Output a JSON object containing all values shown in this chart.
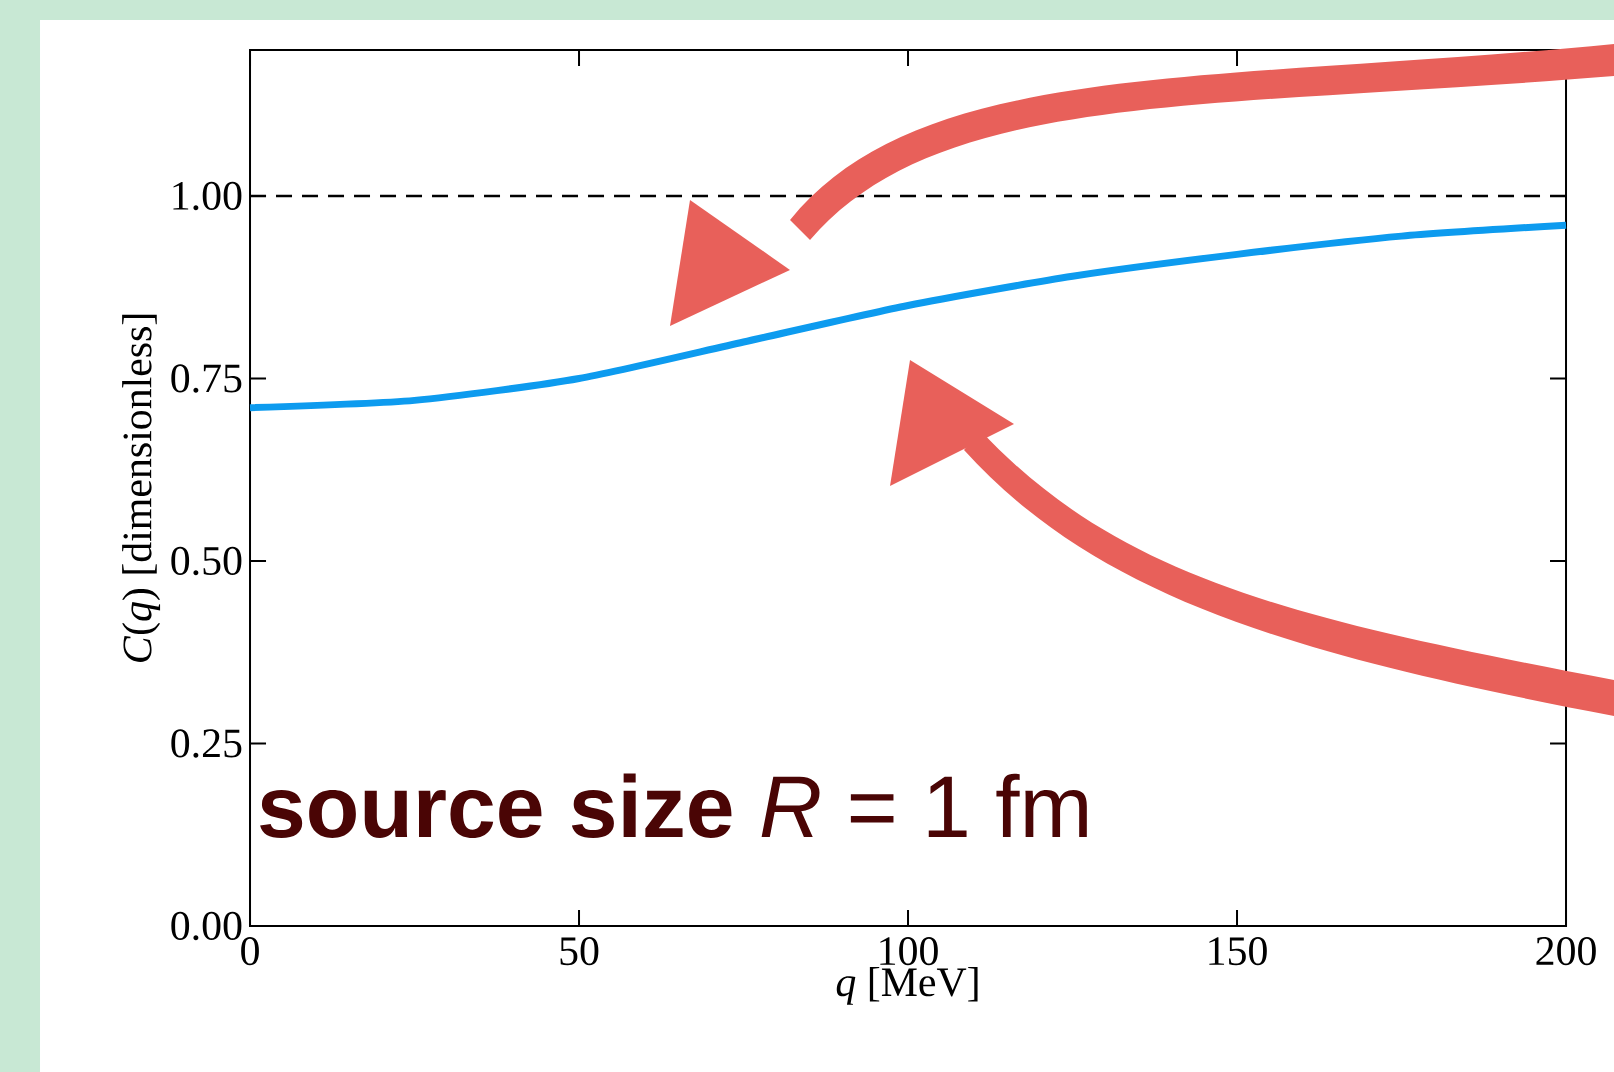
{
  "chart_data": {
    "type": "line",
    "xlabel": "*q* [MeV]",
    "ylabel": "*C*(*q*)  [dimensionless]",
    "x": [
      0,
      25,
      50,
      75,
      100,
      125,
      150,
      175,
      200
    ],
    "series": [
      {
        "color": "#0d9bef",
        "values": [
          0.71,
          0.72,
          0.75,
          0.8,
          0.85,
          0.89,
          0.92,
          0.945,
          0.96
        ]
      }
    ],
    "xlim": [
      0,
      200
    ],
    "ylim": [
      0,
      1.2
    ],
    "xticks": [
      0,
      50,
      100,
      150,
      200
    ],
    "yticks": [
      {
        "value": 0,
        "label": "0.00"
      },
      {
        "value": 0.25,
        "label": "0.25"
      },
      {
        "value": 0.5,
        "label": "0.50"
      },
      {
        "value": 0.75,
        "label": "0.75"
      },
      {
        "value": 1,
        "label": "1.00"
      }
    ],
    "ref_lines": [
      {
        "axis": "y",
        "value": 1,
        "color": "#000000",
        "line_style": "dashed"
      }
    ],
    "annotations": [
      "**source size** *R* = 1 fm"
    ]
  }
}
